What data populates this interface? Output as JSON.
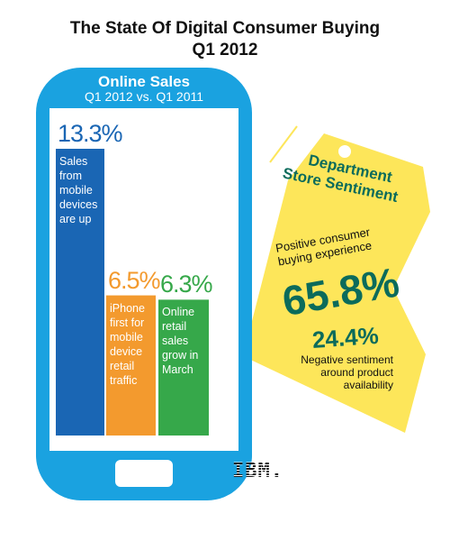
{
  "title": {
    "line1": "The State Of Digital Consumer Buying",
    "line2": "Q1 2012"
  },
  "phone": {
    "title": "Online Sales",
    "subtitle": "Q1 2012 vs. Q1 2011"
  },
  "colors": {
    "phone": "#1aa2e0",
    "bar_mobile": "#1a66b4",
    "bar_iphone": "#f39a2e",
    "bar_online": "#36a84a",
    "tag": "#fde65a",
    "tag_text": "#0b6b5b"
  },
  "chart_data": {
    "type": "bar",
    "title": "Online Sales",
    "subtitle": "Q1 2012 vs. Q1 2011",
    "categories": [
      "Sales from mobile devices are up",
      "iPhone first for mobile device retail traffic",
      "Online retail sales grow in March"
    ],
    "values": [
      13.3,
      6.5,
      6.3
    ],
    "value_labels": [
      "13.3%",
      "6.5%",
      "6.3%"
    ],
    "label_lines": [
      [
        "Sales",
        "from",
        "mobile",
        "devices",
        "are up"
      ],
      [
        "iPhone",
        "first for",
        "mobile",
        "device",
        "retail",
        "traffic"
      ],
      [
        "Online",
        "retail",
        "sales",
        "grow in",
        "March"
      ]
    ]
  },
  "tag": {
    "title_line1": "Department",
    "title_line2": "Store Sentiment",
    "positive_line1": "Positive consumer",
    "positive_line2": "buying experience",
    "positive_value": "65.8%",
    "negative_value": "24.4%",
    "negative_line1": "Negative sentiment",
    "negative_line2": "around product",
    "negative_line3": "availability"
  },
  "logo": "IBM."
}
